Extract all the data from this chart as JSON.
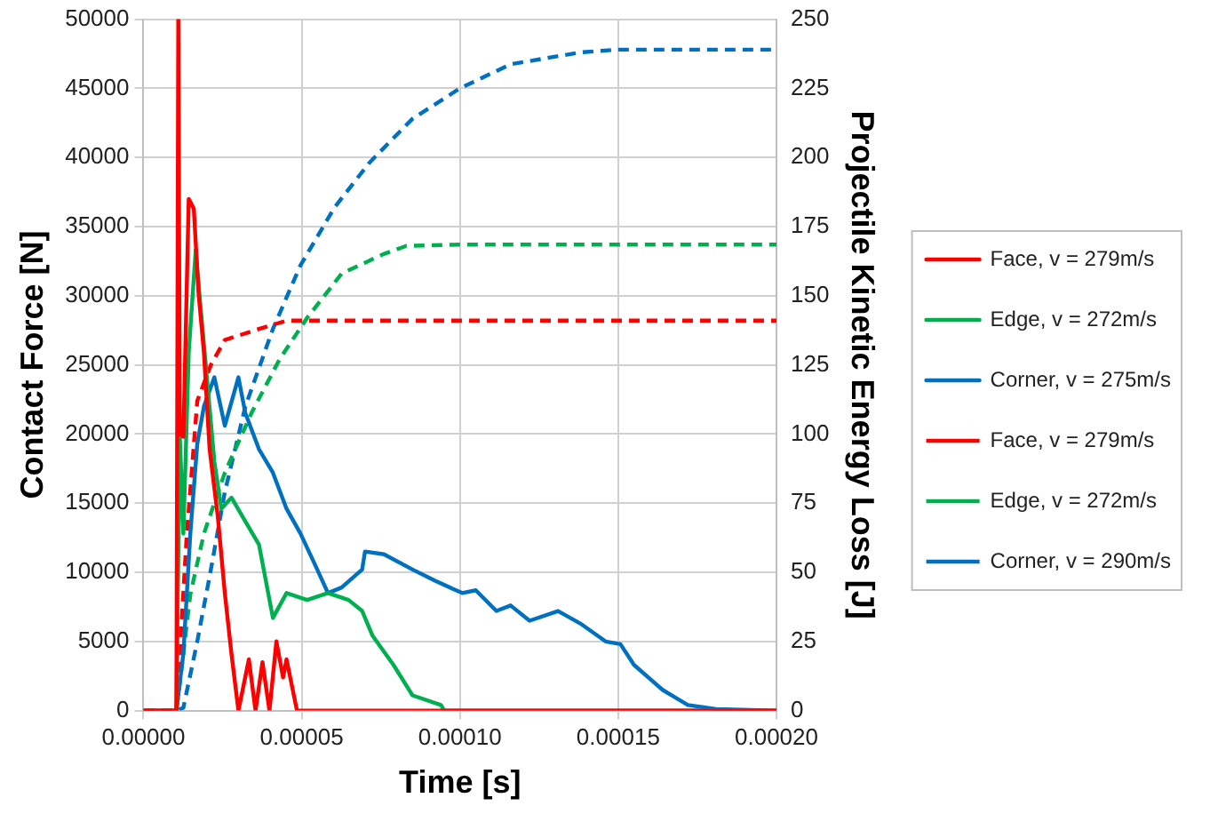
{
  "chart_data": {
    "type": "line",
    "xlabel": "Time [s]",
    "ylabel": "Contact Force [N]",
    "y2label": "Projectile Kinetic Energy Loss [J]",
    "xlim": [
      0,
      0.0002
    ],
    "xticks": [
      {
        "value": 0,
        "label": "0.00000"
      },
      {
        "value": 5e-05,
        "label": "0.00005"
      },
      {
        "value": 0.0001,
        "label": "0.00010"
      },
      {
        "value": 0.00015,
        "label": "0.00015"
      },
      {
        "value": 0.0002,
        "label": "0.00020"
      }
    ],
    "ylim": [
      0,
      50000
    ],
    "yticks": [
      0,
      5000,
      10000,
      15000,
      20000,
      25000,
      30000,
      35000,
      40000,
      45000,
      50000
    ],
    "y2lim": [
      0,
      250
    ],
    "y2ticks": [
      0,
      25,
      50,
      75,
      100,
      125,
      150,
      175,
      200,
      225,
      250
    ],
    "grid": true,
    "legend": "right",
    "marker": "none",
    "series": [
      {
        "name": "Face, v = 279m/s",
        "color": "#ff0000",
        "line_style": "solid",
        "x": [
          0,
          1.04e-05,
          1.1e-05,
          1.15e-05,
          1.26e-05,
          1.43e-05,
          1.59e-05,
          1.74e-05,
          1.91e-05,
          2.09e-05,
          2.35e-05,
          2.57e-05,
          2.78e-05,
          3e-05,
          3.33e-05,
          3.54e-05,
          3.76e-05,
          3.98e-05,
          4.2e-05,
          4.41e-05,
          4.52e-05,
          4.85e-05,
          0.0002
        ],
        "values": [
          0,
          0,
          50000,
          20000,
          19800,
          37000,
          36300,
          30200,
          25900,
          18900,
          14000,
          8500,
          4100,
          0,
          3700,
          0,
          3500,
          0,
          5000,
          2400,
          3700,
          0,
          0
        ]
      },
      {
        "name": "Edge, v = 272m/s",
        "color": "#00b050",
        "line_style": "solid",
        "x": [
          0,
          1.04e-05,
          1.15e-05,
          1.26e-05,
          1.43e-05,
          1.65e-05,
          1.8e-05,
          2.02e-05,
          2.24e-05,
          2.46e-05,
          2.78e-05,
          3.11e-05,
          3.65e-05,
          4.09e-05,
          4.52e-05,
          5.17e-05,
          5.83e-05,
          6.48e-05,
          6.91e-05,
          7.24e-05,
          7.9e-05,
          8.5e-05,
          9.4e-05,
          9.5e-05,
          0.0002
        ],
        "values": [
          0,
          0,
          19800,
          12800,
          25900,
          33300,
          29300,
          23700,
          18000,
          14600,
          15400,
          14100,
          12000,
          6700,
          8500,
          8000,
          8500,
          8000,
          7200,
          5400,
          3300,
          1100,
          400,
          0,
          0
        ]
      },
      {
        "name": "Corner, v = 275m/s",
        "color": "#0070c0",
        "line_style": "solid",
        "x": [
          0,
          1.04e-05,
          1.26e-05,
          1.48e-05,
          1.7e-05,
          1.91e-05,
          2.24e-05,
          2.57e-05,
          3e-05,
          3.22e-05,
          3.65e-05,
          4.09e-05,
          4.52e-05,
          4.96e-05,
          5.39e-05,
          5.83e-05,
          6.26e-05,
          6.91e-05,
          7e-05,
          7.6e-05,
          8.5e-05,
          9.2e-05,
          0.0001007,
          0.000105,
          0.0001115,
          0.000116,
          0.000122,
          0.000131,
          0.000138,
          0.000146,
          0.0001507,
          0.000155,
          0.000164,
          0.000172,
          0.000181,
          0.0002
        ],
        "values": [
          0,
          0,
          4100,
          12800,
          19300,
          22000,
          24100,
          20600,
          24100,
          21500,
          18900,
          17200,
          14600,
          12800,
          10700,
          8500,
          8900,
          10200,
          11500,
          11300,
          10200,
          9400,
          8500,
          8700,
          7200,
          7600,
          6500,
          7200,
          6300,
          5000,
          4800,
          3300,
          1500,
          400,
          100,
          0
        ]
      },
      {
        "name": "Face, v = 279m/s",
        "color": "#ff0000",
        "line_style": "dashed",
        "axis": "y2",
        "x": [
          0,
          1.04e-05,
          1.37e-05,
          1.7e-05,
          2.13e-05,
          2.57e-05,
          3.65e-05,
          4.52e-05,
          0.0002
        ],
        "values": [
          0,
          0,
          64,
          112,
          125,
          134,
          138,
          141,
          141
        ]
      },
      {
        "name": "Edge, v = 272m/s",
        "color": "#00b050",
        "line_style": "dashed",
        "axis": "y2",
        "x": [
          0,
          1.04e-05,
          1.15e-05,
          1.48e-05,
          1.91e-05,
          2.57e-05,
          3.43e-05,
          4.3e-05,
          5.17e-05,
          6.26e-05,
          7.57e-05,
          8.3e-05,
          0.0001,
          0.0002
        ],
        "values": [
          0,
          0,
          10,
          42,
          64,
          86,
          108,
          127,
          142,
          158,
          165,
          168,
          168.5,
          168.5
        ]
      },
      {
        "name": "Corner, v = 290m/s",
        "color": "#0070c0",
        "line_style": "dashed",
        "axis": "y2",
        "x": [
          0,
          1.04e-05,
          1.26e-05,
          1.7e-05,
          2.13e-05,
          2.57e-05,
          3.22e-05,
          4.09e-05,
          4.96e-05,
          6.04e-05,
          7.13e-05,
          8.5e-05,
          0.0001,
          0.000116,
          0.000138,
          0.00015,
          0.0002
        ],
        "values": [
          0,
          0,
          1,
          25,
          51,
          79,
          110,
          138,
          161,
          182,
          198,
          214,
          225,
          233.7,
          238,
          239,
          239
        ]
      }
    ]
  }
}
